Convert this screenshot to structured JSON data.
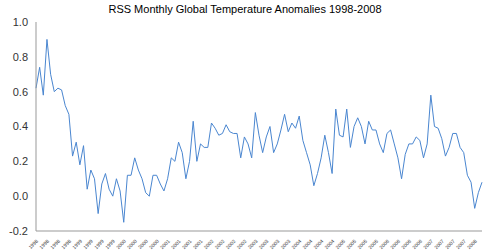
{
  "chart_data": {
    "type": "line",
    "title": "RSS Monthly Global Temperature Anomalies 1998-2008",
    "categories": [
      "1998",
      null,
      null,
      "1998",
      null,
      null,
      "1998",
      null,
      null,
      "1998",
      null,
      null,
      "1999",
      null,
      null,
      "1999",
      null,
      null,
      "1999",
      null,
      null,
      "1999",
      null,
      null,
      "2000",
      null,
      null,
      "2000",
      null,
      null,
      "2000",
      null,
      null,
      "2000",
      null,
      null,
      "2001",
      null,
      null,
      "2001",
      null,
      null,
      "2001",
      null,
      null,
      "2001",
      null,
      null,
      "2002",
      null,
      null,
      "2002",
      null,
      null,
      "2002",
      null,
      null,
      "2002",
      null,
      null,
      "2003",
      null,
      null,
      "2003",
      null,
      null,
      "2003",
      null,
      null,
      "2003",
      null,
      null,
      "2004",
      null,
      null,
      "2004",
      null,
      null,
      "2004",
      null,
      null,
      "2004",
      null,
      null,
      "2005",
      null,
      null,
      "2005",
      null,
      null,
      "2005",
      null,
      null,
      "2005",
      null,
      null,
      "2006",
      null,
      null,
      "2006",
      null,
      null,
      "2006",
      null,
      null,
      "2006",
      null,
      null,
      "2007",
      null,
      null,
      "2007",
      null,
      null,
      "2007",
      null,
      null,
      "2007",
      null,
      null,
      "2008",
      null,
      null
    ],
    "values": [
      0.62,
      0.74,
      0.58,
      0.9,
      0.7,
      0.6,
      0.62,
      0.61,
      0.52,
      0.47,
      0.23,
      0.31,
      0.18,
      0.29,
      0.04,
      0.15,
      0.1,
      -0.1,
      0.07,
      0.13,
      0.04,
      0.0,
      0.1,
      0.03,
      -0.15,
      0.12,
      0.12,
      0.22,
      0.15,
      0.1,
      0.02,
      0.0,
      0.12,
      0.12,
      0.07,
      0.03,
      0.1,
      0.22,
      0.2,
      0.31,
      0.25,
      0.1,
      0.2,
      0.43,
      0.2,
      0.3,
      0.28,
      0.28,
      0.42,
      0.39,
      0.35,
      0.36,
      0.41,
      0.37,
      0.36,
      0.36,
      0.22,
      0.34,
      0.3,
      0.22,
      0.48,
      0.35,
      0.25,
      0.34,
      0.4,
      0.25,
      0.3,
      0.38,
      0.47,
      0.37,
      0.42,
      0.39,
      0.46,
      0.32,
      0.25,
      0.18,
      0.06,
      0.13,
      0.22,
      0.35,
      0.25,
      0.13,
      0.5,
      0.35,
      0.34,
      0.5,
      0.28,
      0.4,
      0.45,
      0.4,
      0.3,
      0.43,
      0.38,
      0.38,
      0.3,
      0.25,
      0.36,
      0.38,
      0.3,
      0.22,
      0.1,
      0.24,
      0.3,
      0.3,
      0.34,
      0.32,
      0.22,
      0.3,
      0.58,
      0.4,
      0.39,
      0.33,
      0.23,
      0.28,
      0.36,
      0.36,
      0.28,
      0.25,
      0.12,
      0.08,
      -0.07,
      0.02,
      0.08
    ],
    "color": "#4a86d0",
    "ylim": [
      -0.2,
      1.0
    ],
    "yticks": [
      -0.2,
      {
        "value": 0,
        "label": "0.0"
      },
      0.2,
      0.4,
      0.6,
      0.8,
      {
        "value": 1,
        "label": "1.0"
      }
    ],
    "grid": false
  }
}
